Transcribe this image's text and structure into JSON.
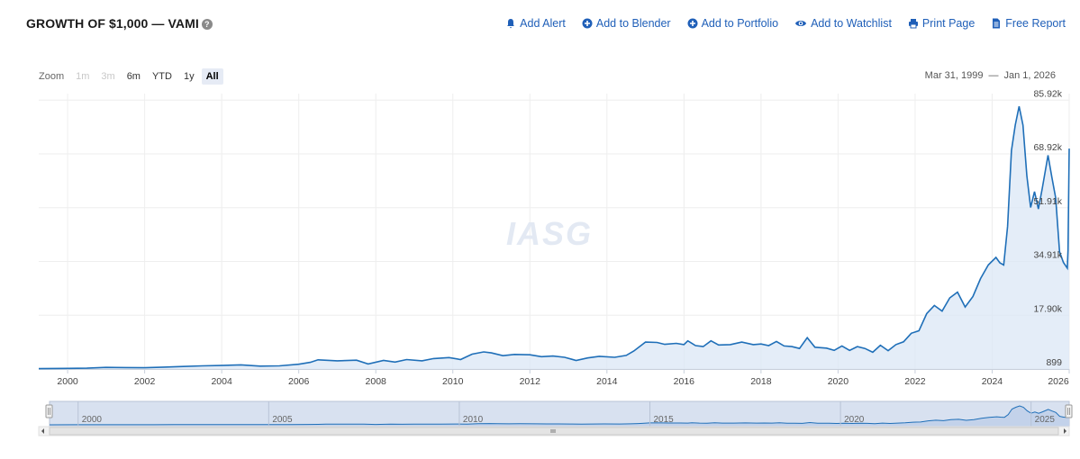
{
  "header": {
    "title": "GROWTH OF $1,000 — VAMI",
    "help_icon": "?"
  },
  "actions": [
    {
      "label": "Add Alert",
      "icon": "bell-icon"
    },
    {
      "label": "Add to Blender",
      "icon": "plus-circle-icon"
    },
    {
      "label": "Add to Portfolio",
      "icon": "plus-circle-icon"
    },
    {
      "label": "Add to Watchlist",
      "icon": "eye-icon"
    },
    {
      "label": "Print Page",
      "icon": "printer-icon"
    },
    {
      "label": "Free Report",
      "icon": "document-icon"
    }
  ],
  "zoom": {
    "label": "Zoom",
    "buttons": [
      {
        "label": "1m",
        "state": "disabled"
      },
      {
        "label": "3m",
        "state": "disabled"
      },
      {
        "label": "6m",
        "state": "normal"
      },
      {
        "label": "YTD",
        "state": "normal"
      },
      {
        "label": "1y",
        "state": "normal"
      },
      {
        "label": "All",
        "state": "active"
      }
    ]
  },
  "range": {
    "from": "Mar 31, 1999",
    "separator": "—",
    "to": "Jan 1, 2026"
  },
  "watermark": "IASG",
  "colors": {
    "line": "#1f6fb8",
    "fill": "#dbe7f5",
    "link": "#1f5fb8"
  },
  "chart_data": {
    "type": "area",
    "title": "GROWTH OF $1,000 — VAMI",
    "xlim": [
      1999.25,
      2026.0
    ],
    "ylim": [
      899,
      88000
    ],
    "y_ticks": [
      "899",
      "17.90k",
      "34.91k",
      "51.91k",
      "68.92k",
      "85.92k"
    ],
    "y_tick_values": [
      899,
      17900,
      34910,
      51910,
      68920,
      85920
    ],
    "x_ticks": [
      "2000",
      "2002",
      "2004",
      "2006",
      "2008",
      "2010",
      "2012",
      "2014",
      "2016",
      "2018",
      "2020",
      "2022",
      "2024",
      "2026"
    ],
    "x_tick_values": [
      2000,
      2002,
      2004,
      2006,
      2008,
      2010,
      2012,
      2014,
      2016,
      2018,
      2020,
      2022,
      2024,
      2026
    ],
    "navigator_labels": [
      "2000",
      "2005",
      "2010",
      "2015",
      "2020",
      "2025"
    ],
    "navigator_values": [
      2000,
      2005,
      2010,
      2015,
      2020,
      2025
    ],
    "series": [
      {
        "name": "",
        "points": [
          [
            1999.25,
            1000
          ],
          [
            2000.0,
            1100
          ],
          [
            2000.5,
            1150
          ],
          [
            2001.0,
            1400
          ],
          [
            2001.5,
            1350
          ],
          [
            2002.0,
            1300
          ],
          [
            2002.5,
            1500
          ],
          [
            2003.0,
            1700
          ],
          [
            2003.5,
            1900
          ],
          [
            2004.0,
            2000
          ],
          [
            2004.5,
            2200
          ],
          [
            2005.0,
            1800
          ],
          [
            2005.5,
            1900
          ],
          [
            2006.0,
            2400
          ],
          [
            2006.3,
            3000
          ],
          [
            2006.5,
            3800
          ],
          [
            2007.0,
            3500
          ],
          [
            2007.5,
            3700
          ],
          [
            2007.8,
            2500
          ],
          [
            2008.2,
            3600
          ],
          [
            2008.5,
            3100
          ],
          [
            2008.8,
            3900
          ],
          [
            2009.2,
            3500
          ],
          [
            2009.5,
            4200
          ],
          [
            2009.9,
            4500
          ],
          [
            2010.2,
            3900
          ],
          [
            2010.5,
            5600
          ],
          [
            2010.8,
            6300
          ],
          [
            2011.0,
            6000
          ],
          [
            2011.3,
            5100
          ],
          [
            2011.6,
            5500
          ],
          [
            2012.0,
            5400
          ],
          [
            2012.3,
            4800
          ],
          [
            2012.6,
            5000
          ],
          [
            2012.9,
            4600
          ],
          [
            2013.2,
            3600
          ],
          [
            2013.5,
            4400
          ],
          [
            2013.8,
            4900
          ],
          [
            2014.2,
            4600
          ],
          [
            2014.5,
            5200
          ],
          [
            2014.7,
            6600
          ],
          [
            2015.0,
            9400
          ],
          [
            2015.3,
            9300
          ],
          [
            2015.5,
            8700
          ],
          [
            2015.8,
            9000
          ],
          [
            2016.0,
            8600
          ],
          [
            2016.1,
            9800
          ],
          [
            2016.3,
            8300
          ],
          [
            2016.5,
            8000
          ],
          [
            2016.7,
            9800
          ],
          [
            2016.9,
            8500
          ],
          [
            2017.2,
            8600
          ],
          [
            2017.5,
            9400
          ],
          [
            2017.8,
            8600
          ],
          [
            2018.0,
            8800
          ],
          [
            2018.2,
            8300
          ],
          [
            2018.4,
            9600
          ],
          [
            2018.6,
            8200
          ],
          [
            2018.8,
            8000
          ],
          [
            2019.0,
            7400
          ],
          [
            2019.2,
            10800
          ],
          [
            2019.4,
            7800
          ],
          [
            2019.7,
            7500
          ],
          [
            2019.9,
            6800
          ],
          [
            2020.1,
            8200
          ],
          [
            2020.3,
            6800
          ],
          [
            2020.5,
            8000
          ],
          [
            2020.7,
            7400
          ],
          [
            2020.9,
            6200
          ],
          [
            2021.1,
            8400
          ],
          [
            2021.3,
            6700
          ],
          [
            2021.5,
            8600
          ],
          [
            2021.7,
            9500
          ],
          [
            2021.9,
            12200
          ],
          [
            2022.1,
            13000
          ],
          [
            2022.3,
            18400
          ],
          [
            2022.5,
            21000
          ],
          [
            2022.7,
            19200
          ],
          [
            2022.9,
            23400
          ],
          [
            2023.1,
            25200
          ],
          [
            2023.3,
            20500
          ],
          [
            2023.5,
            23800
          ],
          [
            2023.7,
            29500
          ],
          [
            2023.9,
            33800
          ],
          [
            2024.1,
            36200
          ],
          [
            2024.2,
            34500
          ],
          [
            2024.3,
            33800
          ],
          [
            2024.4,
            46000
          ],
          [
            2024.5,
            70000
          ],
          [
            2024.6,
            78000
          ],
          [
            2024.7,
            84000
          ],
          [
            2024.8,
            78000
          ],
          [
            2024.9,
            62000
          ],
          [
            2025.0,
            52000
          ],
          [
            2025.1,
            57000
          ],
          [
            2025.2,
            51500
          ],
          [
            2025.3,
            58000
          ],
          [
            2025.45,
            68500
          ],
          [
            2025.55,
            61500
          ],
          [
            2025.65,
            55000
          ],
          [
            2025.75,
            38000
          ],
          [
            2025.85,
            34600
          ],
          [
            2025.95,
            32800
          ],
          [
            2025.97,
            38500
          ],
          [
            2026.0,
            70600
          ]
        ]
      }
    ]
  }
}
